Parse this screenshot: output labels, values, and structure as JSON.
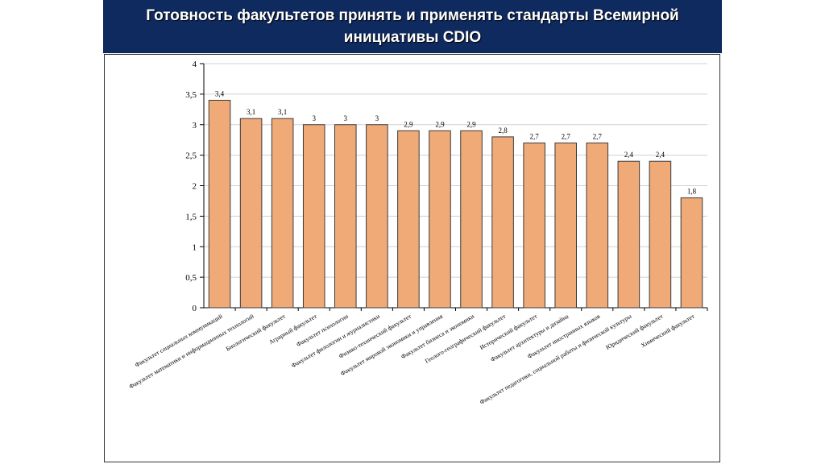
{
  "header": {
    "title": "Готовность факультетов принять и применять стандарты Всемирной инициативы CDIO"
  },
  "chart_data": {
    "type": "bar",
    "title": "Готовность факультетов принять и применять стандарты Всемирной инициативы CDIO",
    "xlabel": "",
    "ylabel": "",
    "ylim": [
      0,
      4
    ],
    "yticks": [
      "0",
      "0,5",
      "1",
      "1,5",
      "2",
      "2,5",
      "3",
      "3,5",
      "4"
    ],
    "ytick_values": [
      0,
      0.5,
      1,
      1.5,
      2,
      2.5,
      3,
      3.5,
      4
    ],
    "grid": true,
    "bar_color": "#f0aa78",
    "bar_edge_color": "#3a3a3a",
    "categories": [
      "Факультет социальных коммуникаций",
      "Факультет математики и информационных технологий",
      "Биологический факультет",
      "Аграрный факультет",
      "Факультет психологии",
      "Факультет филологии и журналистики",
      "Физико-технический факультет",
      "Факультет мировой экономики и управления",
      "Факультет бизнеса и экономики",
      "Геолого-географический факультет",
      "Исторический факультет",
      "Факультет архитектуры и дизайна",
      "Факультет иностранных языков",
      "Факультет педагогики, социальной работы и физической культуры",
      "Юридический факультет",
      "Химический факультет"
    ],
    "values": [
      3.4,
      3.1,
      3.1,
      3.0,
      3.0,
      3.0,
      2.9,
      2.9,
      2.9,
      2.8,
      2.7,
      2.7,
      2.7,
      2.4,
      2.4,
      1.8
    ],
    "data_labels": [
      "3,4",
      "3,1",
      "3,1",
      "3",
      "3",
      "3",
      "2,9",
      "2,9",
      "2,9",
      "2,8",
      "2,7",
      "2,7",
      "2,7",
      "2,4",
      "2,4",
      "1,8"
    ]
  },
  "colors": {
    "banner": "#0f2a5f",
    "banner_text": "#ffffff",
    "grid": "#d0d0d0"
  }
}
